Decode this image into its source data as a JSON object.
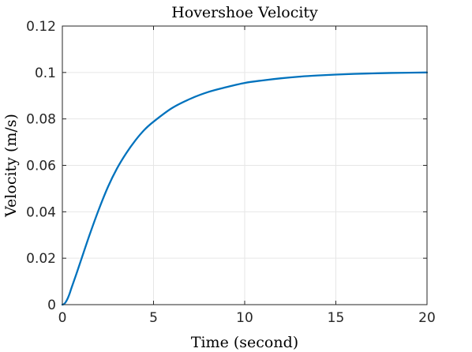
{
  "chart_data": {
    "type": "line",
    "title": "Hovershoe Velocity",
    "xlabel": "Time (second)",
    "ylabel": "Velocity (m/s)",
    "xlim": [
      0,
      20
    ],
    "ylim": [
      0,
      0.12
    ],
    "xticks": [
      0,
      5,
      10,
      15,
      20
    ],
    "yticks": [
      0,
      0.02,
      0.04,
      0.06,
      0.08,
      0.1,
      0.12
    ],
    "xtick_labels": [
      "0",
      "5",
      "10",
      "15",
      "20"
    ],
    "ytick_labels": [
      "0",
      "0.02",
      "0.04",
      "0.06",
      "0.08",
      "0.1",
      "0.12"
    ],
    "grid": true,
    "series": [
      {
        "color": "#0072BD",
        "x": [
          0,
          0.1,
          0.2,
          0.3,
          0.4,
          0.5,
          0.75,
          1,
          1.5,
          2,
          2.5,
          3,
          3.5,
          4,
          4.5,
          5,
          6,
          7,
          8,
          9,
          10,
          11,
          12,
          13,
          14,
          15,
          16,
          17,
          18,
          19,
          20
        ],
        "y": [
          0,
          0.0003,
          0.0013,
          0.0028,
          0.0048,
          0.0072,
          0.0128,
          0.0186,
          0.0302,
          0.041,
          0.0507,
          0.0587,
          0.0652,
          0.0707,
          0.0753,
          0.0788,
          0.0846,
          0.0886,
          0.0916,
          0.0937,
          0.0955,
          0.0966,
          0.0975,
          0.0982,
          0.0987,
          0.0991,
          0.0994,
          0.0996,
          0.0998,
          0.0999,
          0.1
        ]
      }
    ]
  }
}
